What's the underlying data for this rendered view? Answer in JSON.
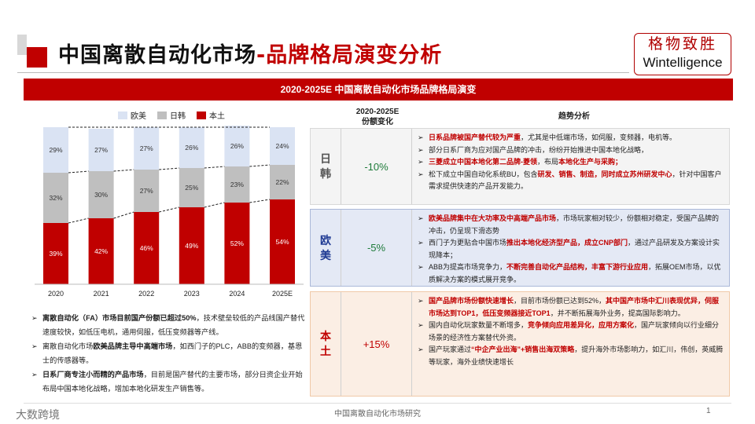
{
  "title": {
    "main": "中国离散自动化市场",
    "sep": "-",
    "highlight": "品牌格局演变分析"
  },
  "logo": {
    "cn": "格物致胜",
    "en": "Wintelligence"
  },
  "banner": "2020-2025E  中国离散自动化市场品牌格局演变",
  "legend": [
    {
      "label": "欧美",
      "color": "#dae3f3"
    },
    {
      "label": "日韩",
      "color": "#bfbfbf"
    },
    {
      "label": "本土",
      "color": "#c00000"
    }
  ],
  "chart_data": {
    "type": "bar",
    "stacked": true,
    "categories": [
      "2020",
      "2021",
      "2022",
      "2023",
      "2024",
      "2025E"
    ],
    "series": [
      {
        "name": "本土",
        "values": [
          39,
          42,
          46,
          49,
          52,
          54
        ],
        "color": "#c00000"
      },
      {
        "name": "日韩",
        "values": [
          32,
          30,
          27,
          25,
          23,
          22
        ],
        "color": "#bfbfbf"
      },
      {
        "name": "欧美",
        "values": [
          29,
          27,
          27,
          26,
          26,
          24
        ],
        "color": "#dae3f3"
      }
    ],
    "labels": {
      "本土": [
        "39%",
        "42%",
        "46%",
        "49%",
        "52%",
        "54%"
      ],
      "日韩": [
        "32%",
        "30%",
        "27%",
        "25%",
        "23%",
        "22%"
      ],
      "欧美": [
        "29%",
        "27%",
        "27%",
        "26%",
        "26%",
        "24%"
      ]
    },
    "ylim": [
      0,
      100
    ]
  },
  "left_bullets": [
    {
      "bold": "离散自动化（FA）市场目前国产份额已超过50%",
      "rest": "，技术壁垒较低的产品线国产替代速度较快，如低压电机，通用伺服，低压变频器等产线。"
    },
    {
      "pre": "离散自动化市场",
      "bold": "欧美品牌主导中高端市场",
      "rest": "，如西门子的PLC，ABB的变频器，基恩士的传感器等。"
    },
    {
      "bold": "日系厂商专注小而精的产品市场",
      "rest": "，目前是国产替代的主要市场，部分日资企业开始布局中国本地化战略，增加本地化研发生产销售等。"
    }
  ],
  "table": {
    "col_share": "2020-2025E\n份额变化",
    "col_trend": "趋势分析",
    "rows": [
      {
        "label": "日韩",
        "change": "-10%",
        "bullets": [
          {
            "red": "日系品牌被国产替代较为严重",
            "rest": "，尤其是中低端市场，如伺服，变频器，电机等。"
          },
          {
            "rest": "部分日系厂商为应对国产品牌的冲击，纷纷开始推进中国本地化战略，"
          },
          {
            "red": "三菱成立中国本地化第二品牌-菱领",
            "rest": "，布局",
            "red2": "本地化生产与采购；"
          },
          {
            "rest": "松下成立中国自动化系统BU，包含",
            "red": "研发、销售、制造，同时成立苏州研发中心",
            "rest2": "，针对中国客户需求提供快速的产品开发能力。"
          }
        ]
      },
      {
        "label": "欧美",
        "change": "-5%",
        "bullets": [
          {
            "red": "欧美品牌集中在大功率及中高端产品市场",
            "rest": "，市场玩家相对较少，份额相对稳定，受国产品牌的冲击，仍呈现下滑态势"
          },
          {
            "rest": "西门子为更贴合中国市场",
            "red": "推出本地化经济型产品，成立CNP部门",
            "rest2": "，通过产品研发及方案设计实现降本；"
          },
          {
            "rest": "ABB为提高市场竞争力，",
            "red": "不断完善自动化产品结构，丰富下游行业应用",
            "rest2": "，拓展OEM市场，以优质解决方案的模式展开竞争。"
          }
        ]
      },
      {
        "label": "本土",
        "change": "+15%",
        "bullets": [
          {
            "red": "国产品牌市场份额快速增长",
            "rest": "，目前市场份额已达到52%，",
            "red2": "其中国产市场中汇川表现优异，伺服市场达到TOP1，低压变频器接近TOP1",
            "rest2": "，并不断拓展海外业务，提高国际影响力。"
          },
          {
            "rest": "国内自动化玩家数量不断增多，",
            "red": "竞争倾向应用差异化，应用方案化",
            "rest2": "，国产玩家倾向以行业细分场景的经济性方案替代外资。"
          },
          {
            "rest": "国产玩家通过",
            "red": "“中企产业出海”+销售出海双策略",
            "rest2": "，提升海外市场影响力，如汇川，伟创，英威腾等玩家，海外业绩快速增长"
          }
        ]
      }
    ]
  },
  "footer": {
    "brand": "大数跨境",
    "center": "中国离散自动化市场研究",
    "page": "1"
  }
}
